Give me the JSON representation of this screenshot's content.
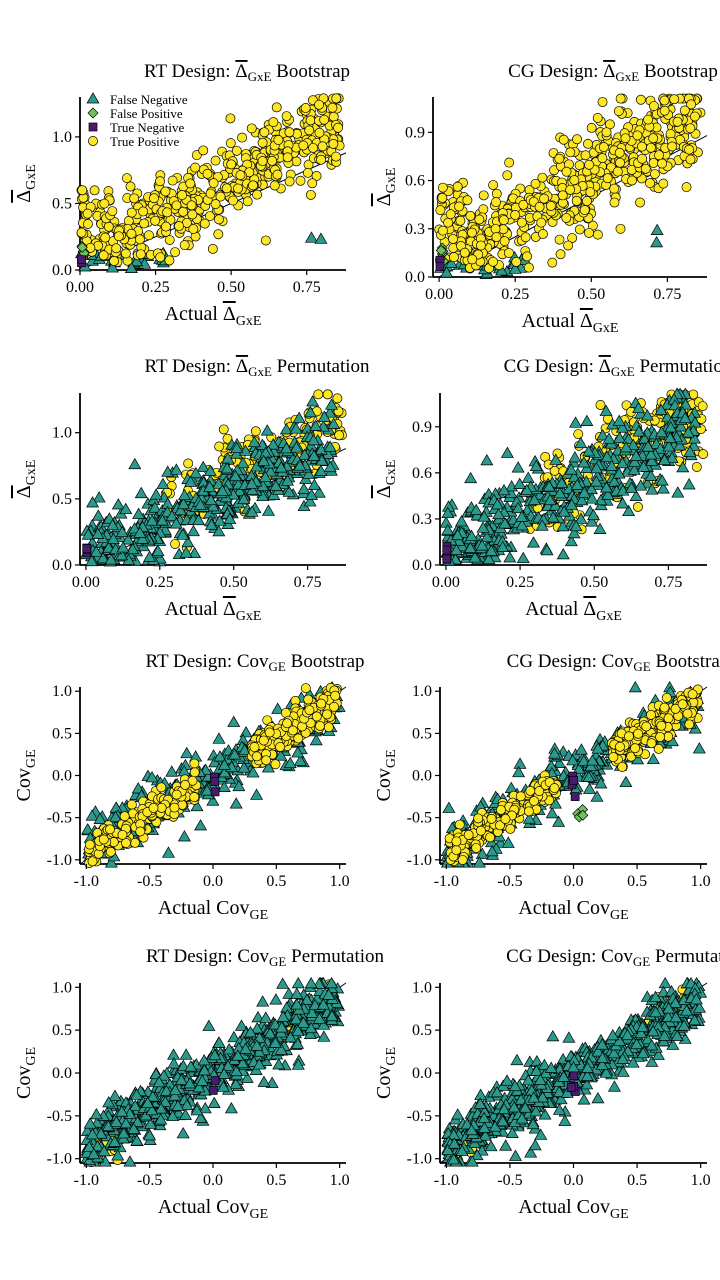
{
  "colors": {
    "false_negative": "#2a9a8c",
    "false_positive": "#6cc35a",
    "true_negative": "#4a1a6e",
    "true_positive": "#fde725"
  },
  "legend": {
    "position": "top-left",
    "entries": [
      {
        "key": "false_negative",
        "label": "False Negative",
        "shape": "triangle"
      },
      {
        "key": "false_positive",
        "label": "False Positive",
        "shape": "diamond"
      },
      {
        "key": "true_negative",
        "label": "True Negative",
        "shape": "square"
      },
      {
        "key": "true_positive",
        "label": "True Positive",
        "shape": "circle"
      }
    ]
  },
  "chart_data": [
    {
      "id": "rt-gxe-boot",
      "type": "scatter",
      "title_main": "RT Design: ",
      "title_symbol": "Δ",
      "title_sub": "GxE",
      "title_rest": " Bootstrap",
      "xlabel_main": "Actual ",
      "xlabel_symbol": "Δ",
      "xlabel_sub": "GxE",
      "ylabel_symbol": "Δ",
      "ylabel_main": "",
      "ylabel_sub": "GxE",
      "xlim": [
        0,
        0.88
      ],
      "ylim": [
        0,
        1.3
      ],
      "xticks": [
        "0.00",
        "0.25",
        "0.50",
        "0.75"
      ],
      "yticks": [
        "0.0",
        "0.5",
        "1.0"
      ],
      "xtick_values": [
        0,
        0.25,
        0.5,
        0.75
      ],
      "ytick_values": [
        0,
        0.5,
        1.0
      ],
      "reference_line": "y = x",
      "legend": true,
      "points": {
        "true_positive": 520,
        "false_negative": 30,
        "false_positive": 6,
        "true_negative": 2
      },
      "pattern": "gxe_boot_rt"
    },
    {
      "id": "cg-gxe-boot",
      "type": "scatter",
      "title_main": "CG Design: ",
      "title_symbol": "Δ",
      "title_sub": "GxE",
      "title_rest": " Bootstrap",
      "xlabel_main": "Actual ",
      "xlabel_symbol": "Δ",
      "xlabel_sub": "GxE",
      "ylabel_symbol": "Δ",
      "ylabel_main": "",
      "ylabel_sub": "GxE",
      "xlim": [
        -0.02,
        0.88
      ],
      "ylim": [
        0,
        1.12
      ],
      "xticks": [
        "0.00",
        "0.25",
        "0.50",
        "0.75"
      ],
      "yticks": [
        "0.0",
        "0.3",
        "0.6",
        "0.9"
      ],
      "xtick_values": [
        0,
        0.25,
        0.5,
        0.75
      ],
      "ytick_values": [
        0,
        0.3,
        0.6,
        0.9
      ],
      "reference_line": "y = x",
      "legend": false,
      "points": {
        "true_positive": 560,
        "false_negative": 35,
        "false_positive": 6,
        "true_negative": 2
      },
      "pattern": "gxe_boot_cg"
    },
    {
      "id": "rt-gxe-perm",
      "type": "scatter",
      "title_main": "RT Design: ",
      "title_symbol": "Δ",
      "title_sub": "GxE",
      "title_rest": " Permutation",
      "xlabel_main": "Actual ",
      "xlabel_symbol": "Δ",
      "xlabel_sub": "GxE",
      "ylabel_symbol": "Δ",
      "ylabel_main": "",
      "ylabel_sub": "GxE",
      "xlim": [
        -0.02,
        0.88
      ],
      "ylim": [
        0,
        1.3
      ],
      "xticks": [
        "0.00",
        "0.25",
        "0.50",
        "0.75"
      ],
      "yticks": [
        "0.0",
        "0.5",
        "1.0"
      ],
      "xtick_values": [
        0,
        0.25,
        0.5,
        0.75
      ],
      "ytick_values": [
        0,
        0.5,
        1.0
      ],
      "reference_line": "y = x",
      "legend": false,
      "points": {
        "true_positive": 170,
        "false_negative": 420,
        "false_positive": 0,
        "true_negative": 4
      },
      "pattern": "gxe_perm_rt"
    },
    {
      "id": "cg-gxe-perm",
      "type": "scatter",
      "title_main": "CG Design: ",
      "title_symbol": "Δ",
      "title_sub": "GxE",
      "title_rest": " Permutation",
      "xlabel_main": "Actual ",
      "xlabel_symbol": "Δ",
      "xlabel_sub": "GxE",
      "ylabel_symbol": "Δ",
      "ylabel_main": "",
      "ylabel_sub": "GxE",
      "xlim": [
        -0.02,
        0.88
      ],
      "ylim": [
        0,
        1.12
      ],
      "xticks": [
        "0.00",
        "0.25",
        "0.50",
        "0.75"
      ],
      "yticks": [
        "0.0",
        "0.3",
        "0.6",
        "0.9"
      ],
      "xtick_values": [
        0,
        0.25,
        0.5,
        0.75
      ],
      "ytick_values": [
        0,
        0.3,
        0.6,
        0.9
      ],
      "reference_line": "y = x",
      "legend": false,
      "points": {
        "true_positive": 190,
        "false_negative": 430,
        "false_positive": 0,
        "true_negative": 5
      },
      "pattern": "gxe_perm_cg"
    },
    {
      "id": "rt-cov-boot",
      "type": "scatter",
      "title_main": "RT Design: ",
      "title_symbol": "",
      "title_sub": "GE",
      "title_rest": " Bootstrap",
      "title_prefix": "Cov",
      "xlabel_main": "Actual Cov",
      "xlabel_symbol": "",
      "xlabel_sub": "GE",
      "ylabel_symbol": "",
      "ylabel_main": "Cov",
      "ylabel_sub": "GE",
      "xlim": [
        -1.05,
        1.05
      ],
      "ylim": [
        -1.05,
        1.05
      ],
      "xticks": [
        "-1.0",
        "-0.5",
        "0.0",
        "0.5",
        "1.0"
      ],
      "yticks": [
        "-1.0",
        "-0.5",
        "0.0",
        "0.5",
        "1.0"
      ],
      "xtick_values": [
        -1,
        -0.5,
        0,
        0.5,
        1
      ],
      "ytick_values": [
        -1,
        -0.5,
        0,
        0.5,
        1
      ],
      "reference_line": "y = x",
      "legend": false,
      "points": {
        "true_positive": 420,
        "false_negative": 330,
        "false_positive": 0,
        "true_negative": 3
      },
      "pattern": "cov_boot_rt"
    },
    {
      "id": "cg-cov-boot",
      "type": "scatter",
      "title_main": "CG Design: ",
      "title_symbol": "",
      "title_sub": "GE",
      "title_rest": " Bootstrap",
      "title_prefix": "Cov",
      "xlabel_main": "Actual Cov",
      "xlabel_symbol": "",
      "xlabel_sub": "GE",
      "ylabel_symbol": "",
      "ylabel_main": "Cov",
      "ylabel_sub": "GE",
      "xlim": [
        -1.05,
        1.05
      ],
      "ylim": [
        -1.05,
        1.05
      ],
      "xticks": [
        "-1.0",
        "-0.5",
        "0.0",
        "0.5",
        "1.0"
      ],
      "yticks": [
        "-1.0",
        "-0.5",
        "0.0",
        "0.5",
        "1.0"
      ],
      "xtick_values": [
        -1,
        -0.5,
        0,
        0.5,
        1
      ],
      "ytick_values": [
        -1,
        -0.5,
        0,
        0.5,
        1
      ],
      "reference_line": "y = x",
      "legend": false,
      "points": {
        "true_positive": 430,
        "false_negative": 330,
        "false_positive": 4,
        "true_negative": 4
      },
      "pattern": "cov_boot_cg"
    },
    {
      "id": "rt-cov-perm",
      "type": "scatter",
      "title_main": "RT Design: ",
      "title_symbol": "",
      "title_sub": "GE",
      "title_rest": " Permutation",
      "title_prefix": "Cov",
      "xlabel_main": "Actual Cov",
      "xlabel_symbol": "",
      "xlabel_sub": "GE",
      "ylabel_symbol": "",
      "ylabel_main": "Cov",
      "ylabel_sub": "GE",
      "xlim": [
        -1.05,
        1.05
      ],
      "ylim": [
        -1.05,
        1.05
      ],
      "xticks": [
        "-1.0",
        "-0.5",
        "0.0",
        "0.5",
        "1.0"
      ],
      "yticks": [
        "-1.0",
        "-0.5",
        "0.0",
        "0.5",
        "1.0"
      ],
      "xtick_values": [
        -1,
        -0.5,
        0,
        0.5,
        1
      ],
      "ytick_values": [
        -1,
        -0.5,
        0,
        0.5,
        1
      ],
      "reference_line": "y = x",
      "legend": false,
      "points": {
        "true_positive": 90,
        "false_negative": 620,
        "false_positive": 0,
        "true_negative": 2
      },
      "pattern": "cov_perm_rt"
    },
    {
      "id": "cg-cov-perm",
      "type": "scatter",
      "title_main": "CG Design: ",
      "title_symbol": "",
      "title_sub": "GE",
      "title_rest": " Permutation",
      "title_prefix": "Cov",
      "xlabel_main": "Actual Cov",
      "xlabel_symbol": "",
      "xlabel_sub": "GE",
      "ylabel_symbol": "",
      "ylabel_main": "Cov",
      "ylabel_sub": "GE",
      "xlim": [
        -1.05,
        1.05
      ],
      "ylim": [
        -1.05,
        1.05
      ],
      "xticks": [
        "-1.0",
        "-0.5",
        "0.0",
        "0.5",
        "1.0"
      ],
      "yticks": [
        "-1.0",
        "-0.5",
        "0.0",
        "0.5",
        "1.0"
      ],
      "xtick_values": [
        -1,
        -0.5,
        0,
        0.5,
        1
      ],
      "ytick_values": [
        -1,
        -0.5,
        0,
        0.5,
        1
      ],
      "reference_line": "y = x",
      "legend": false,
      "points": {
        "true_positive": 70,
        "false_negative": 640,
        "false_positive": 0,
        "true_negative": 4
      },
      "pattern": "cov_perm_cg"
    }
  ]
}
